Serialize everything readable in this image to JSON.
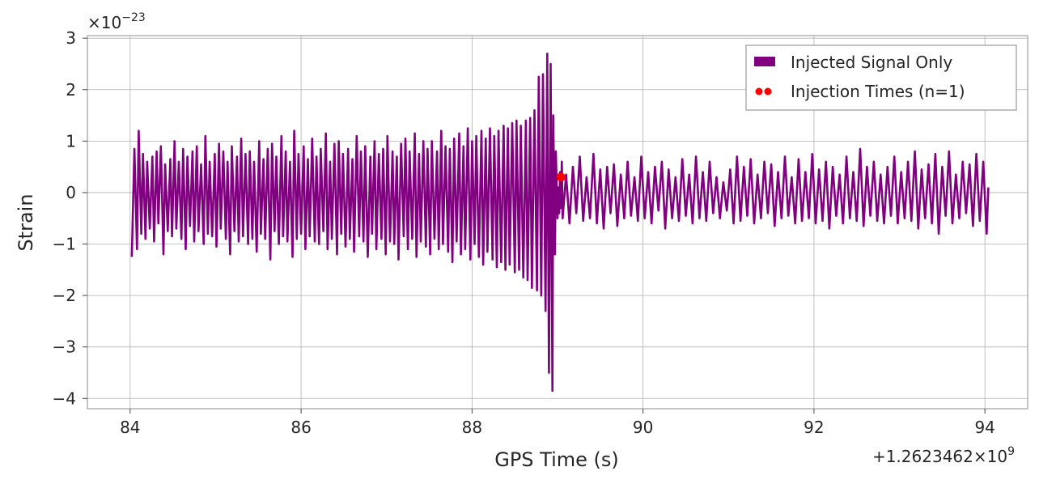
{
  "chart_data": {
    "type": "line",
    "xlabel": "GPS Time (s)",
    "ylabel": "Strain",
    "x_offset_label": "+1.2623462×10",
    "x_offset_exponent": "9",
    "y_scale_label": "×10",
    "y_scale_exponent": "−23",
    "xlim": [
      83.5,
      94.5
    ],
    "ylim": [
      -4.2,
      3.05
    ],
    "x_ticks": [
      84,
      86,
      88,
      90,
      92,
      94
    ],
    "x_tick_labels": [
      "84",
      "86",
      "88",
      "90",
      "92",
      "94"
    ],
    "y_ticks": [
      3,
      2,
      1,
      0,
      -1,
      -2,
      -3,
      -4
    ],
    "y_tick_labels": [
      "3",
      "2",
      "1",
      "0",
      "−1",
      "−2",
      "−3",
      "−4"
    ],
    "grid": true,
    "legend_position": "top-right",
    "series": [
      {
        "name": "Injected Signal Only",
        "color": "#800080",
        "x": [
          84.02,
          84.05,
          84.08,
          84.1,
          84.13,
          84.15,
          84.18,
          84.2,
          84.23,
          84.26,
          84.28,
          84.31,
          84.33,
          84.36,
          84.39,
          84.41,
          84.44,
          84.47,
          84.49,
          84.52,
          84.54,
          84.57,
          84.6,
          84.62,
          84.65,
          84.67,
          84.7,
          84.73,
          84.75,
          84.78,
          84.8,
          84.83,
          84.86,
          84.88,
          84.91,
          84.93,
          84.96,
          84.99,
          85.01,
          85.04,
          85.06,
          85.09,
          85.12,
          85.14,
          85.17,
          85.19,
          85.22,
          85.25,
          85.27,
          85.3,
          85.32,
          85.35,
          85.38,
          85.4,
          85.43,
          85.45,
          85.48,
          85.51,
          85.53,
          85.56,
          85.58,
          85.61,
          85.64,
          85.66,
          85.69,
          85.71,
          85.74,
          85.77,
          85.79,
          85.82,
          85.84,
          85.87,
          85.9,
          85.92,
          85.95,
          85.97,
          86.0,
          86.03,
          86.05,
          86.08,
          86.1,
          86.13,
          86.16,
          86.18,
          86.21,
          86.23,
          86.26,
          86.29,
          86.31,
          86.34,
          86.36,
          86.39,
          86.42,
          86.44,
          86.47,
          86.49,
          86.52,
          86.55,
          86.57,
          86.6,
          86.62,
          86.65,
          86.68,
          86.7,
          86.73,
          86.75,
          86.78,
          86.81,
          86.83,
          86.86,
          86.88,
          86.91,
          86.94,
          86.96,
          86.99,
          87.01,
          87.04,
          87.07,
          87.09,
          87.12,
          87.14,
          87.17,
          87.2,
          87.22,
          87.25,
          87.27,
          87.3,
          87.33,
          87.35,
          87.38,
          87.4,
          87.43,
          87.46,
          87.48,
          87.51,
          87.53,
          87.56,
          87.59,
          87.61,
          87.64,
          87.66,
          87.69,
          87.72,
          87.74,
          87.77,
          87.79,
          87.82,
          87.85,
          87.87,
          87.9,
          87.92,
          87.95,
          87.98,
          88.0,
          88.03,
          88.05,
          88.08,
          88.11,
          88.13,
          88.16,
          88.18,
          88.21,
          88.24,
          88.26,
          88.29,
          88.31,
          88.34,
          88.37,
          88.39,
          88.42,
          88.44,
          88.47,
          88.5,
          88.52,
          88.55,
          88.57,
          88.6,
          88.63,
          88.65,
          88.68,
          88.7,
          88.73,
          88.76,
          88.78,
          88.81,
          88.83,
          88.86,
          88.88,
          88.9,
          88.92,
          88.94,
          88.95,
          88.97,
          88.98,
          89.0,
          89.01,
          89.02,
          89.03,
          89.04,
          89.05,
          89.06,
          89.1,
          89.14,
          89.18,
          89.22,
          89.26,
          89.3,
          89.34,
          89.38,
          89.42,
          89.46,
          89.5,
          89.54,
          89.58,
          89.62,
          89.66,
          89.7,
          89.74,
          89.78,
          89.82,
          89.86,
          89.9,
          89.94,
          89.98,
          90.02,
          90.06,
          90.1,
          90.14,
          90.18,
          90.22,
          90.26,
          90.3,
          90.34,
          90.38,
          90.42,
          90.46,
          90.5,
          90.54,
          90.58,
          90.62,
          90.66,
          90.7,
          90.74,
          90.78,
          90.82,
          90.86,
          90.9,
          90.94,
          90.98,
          91.02,
          91.06,
          91.1,
          91.14,
          91.18,
          91.22,
          91.26,
          91.3,
          91.34,
          91.38,
          91.42,
          91.46,
          91.5,
          91.54,
          91.58,
          91.62,
          91.66,
          91.7,
          91.74,
          91.78,
          91.82,
          91.86,
          91.9,
          91.94,
          91.98,
          92.02,
          92.06,
          92.1,
          92.14,
          92.18,
          92.22,
          92.26,
          92.3,
          92.34,
          92.38,
          92.42,
          92.46,
          92.5,
          92.54,
          92.58,
          92.62,
          92.66,
          92.7,
          92.74,
          92.78,
          92.82,
          92.86,
          92.9,
          92.94,
          92.98,
          93.02,
          93.06,
          93.1,
          93.14,
          93.18,
          93.22,
          93.26,
          93.3,
          93.34,
          93.38,
          93.42,
          93.46,
          93.5,
          93.54,
          93.58,
          93.62,
          93.66,
          93.7,
          93.74,
          93.78,
          93.82,
          93.86,
          93.9,
          93.94,
          93.98,
          94.02,
          94.04
        ],
        "y": [
          -1.25,
          0.85,
          -1.1,
          1.2,
          -0.8,
          0.75,
          -0.9,
          0.6,
          -0.7,
          0.7,
          -0.95,
          0.8,
          -0.6,
          0.9,
          -1.2,
          0.55,
          -0.75,
          0.65,
          -0.85,
          1.0,
          -0.7,
          0.6,
          -0.9,
          0.85,
          -1.1,
          0.7,
          -0.65,
          0.8,
          -0.95,
          0.9,
          -0.75,
          0.55,
          -1.0,
          1.1,
          -0.8,
          0.6,
          -0.85,
          0.75,
          -1.05,
          0.95,
          -0.7,
          0.8,
          -0.9,
          0.6,
          -1.2,
          0.9,
          -0.75,
          0.7,
          -0.95,
          1.05,
          -0.85,
          0.75,
          -1.0,
          0.8,
          -0.9,
          0.6,
          -1.15,
          1.0,
          -0.8,
          0.65,
          -0.9,
          0.85,
          -1.3,
          0.95,
          -0.75,
          0.7,
          -1.0,
          1.1,
          -0.85,
          0.8,
          -0.95,
          0.6,
          -1.25,
          1.2,
          -0.9,
          0.75,
          -0.8,
          0.9,
          -1.1,
          0.65,
          -0.85,
          1.05,
          -0.95,
          0.7,
          -1.0,
          0.85,
          -0.75,
          1.15,
          -1.1,
          0.6,
          -0.9,
          0.95,
          -1.2,
          1.0,
          -0.8,
          0.75,
          -1.05,
          0.85,
          -0.9,
          0.65,
          -1.15,
          1.1,
          -0.85,
          0.8,
          -0.95,
          0.9,
          -1.25,
          0.7,
          -0.8,
          1.0,
          -1.1,
          0.75,
          -0.9,
          0.85,
          -1.2,
          1.1,
          -0.95,
          0.8,
          -1.0,
          0.7,
          -1.3,
          0.95,
          -0.85,
          1.05,
          -1.1,
          0.8,
          -0.9,
          1.15,
          -1.25,
          0.75,
          -0.95,
          1.0,
          -1.05,
          0.85,
          -1.2,
          1.0,
          -0.9,
          0.8,
          -1.1,
          1.2,
          -1.0,
          0.9,
          -1.15,
          0.85,
          -1.35,
          1.05,
          -0.95,
          1.15,
          -1.2,
          0.9,
          -1.1,
          1.25,
          -1.3,
          1.0,
          -1.0,
          1.1,
          -1.25,
          1.2,
          -1.4,
          1.05,
          -1.15,
          1.25,
          -1.3,
          1.1,
          -1.45,
          1.2,
          -1.35,
          1.3,
          -1.5,
          1.25,
          -1.4,
          1.35,
          -1.55,
          1.4,
          -1.5,
          1.3,
          -1.65,
          1.4,
          -1.7,
          1.45,
          -1.85,
          1.6,
          -1.9,
          2.25,
          -2.0,
          2.3,
          -2.3,
          2.7,
          -3.5,
          2.5,
          -3.85,
          1.5,
          -1.2,
          0.8,
          -0.5,
          0.1,
          -0.4,
          0.4,
          -0.3,
          0.6,
          -0.5,
          0.35,
          -0.6,
          0.5,
          -0.4,
          0.7,
          -0.55,
          0.3,
          -0.5,
          0.75,
          -0.6,
          0.45,
          -0.7,
          0.5,
          -0.4,
          0.55,
          -0.65,
          0.35,
          -0.5,
          0.6,
          -0.45,
          0.3,
          -0.55,
          0.7,
          -0.5,
          0.4,
          -0.6,
          0.5,
          -0.35,
          0.6,
          -0.7,
          0.45,
          -0.5,
          0.3,
          -0.55,
          0.65,
          -0.45,
          0.35,
          -0.6,
          0.7,
          -0.5,
          0.4,
          -0.55,
          0.6,
          -0.4,
          0.3,
          -0.5,
          0.2,
          -0.35,
          0.45,
          -0.6,
          0.7,
          -0.55,
          0.5,
          -0.45,
          0.65,
          -0.6,
          0.35,
          -0.5,
          0.6,
          -0.4,
          0.55,
          -0.65,
          0.4,
          -0.5,
          0.7,
          -0.45,
          0.3,
          -0.6,
          0.65,
          -0.55,
          0.4,
          -0.5,
          0.75,
          -0.6,
          0.45,
          -0.55,
          0.6,
          -0.7,
          0.5,
          -0.45,
          0.35,
          -0.6,
          0.7,
          -0.5,
          0.4,
          -0.55,
          0.85,
          -0.65,
          0.5,
          -0.45,
          0.6,
          -0.55,
          0.35,
          -0.6,
          0.5,
          -0.45,
          0.7,
          -0.6,
          0.4,
          -0.5,
          0.6,
          -0.55,
          0.8,
          -0.7,
          0.45,
          -0.5,
          0.55,
          -0.6,
          0.75,
          -0.8,
          0.5,
          -0.45,
          0.8,
          -0.6,
          0.35,
          -0.5,
          0.6,
          -0.4,
          0.55,
          -0.65,
          0.75,
          -0.55,
          0.6,
          -0.8,
          0.1
        ]
      },
      {
        "name": "Injection Times (n=1)",
        "color": "#ff0000",
        "marker": "dot",
        "x": [
          89.04
        ],
        "y": [
          0.3
        ]
      }
    ]
  }
}
